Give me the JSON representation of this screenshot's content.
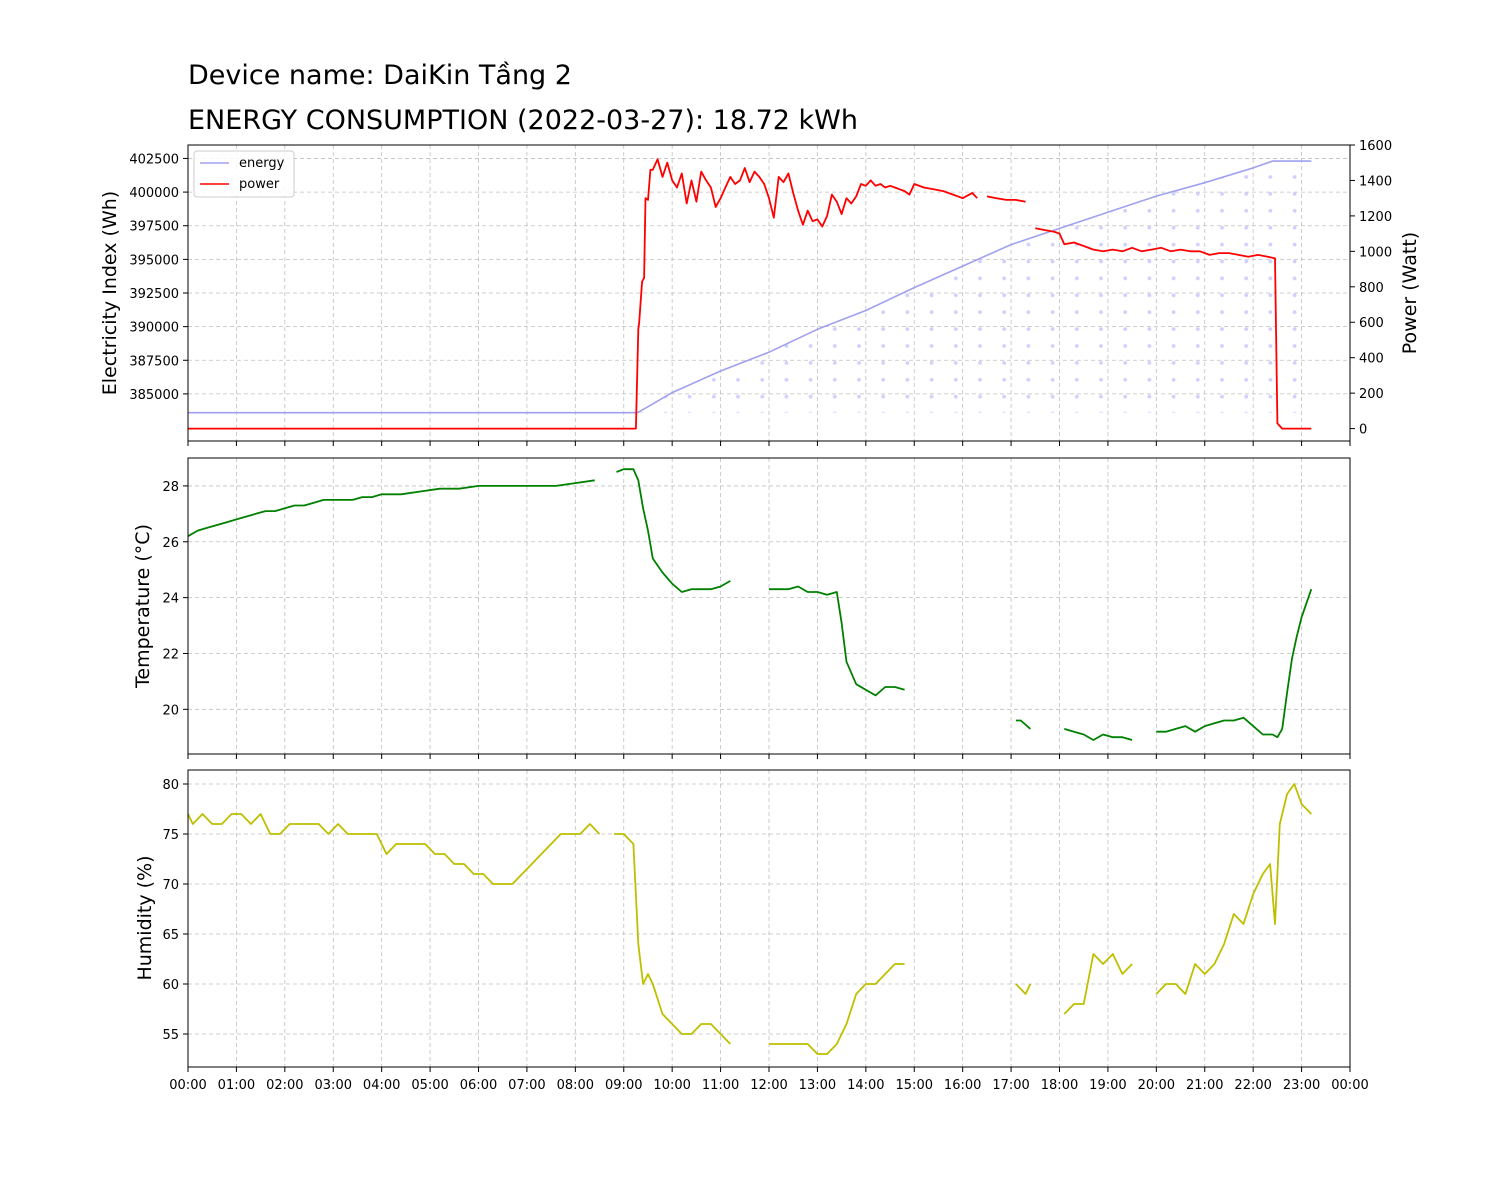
{
  "titles": {
    "line1": "Device name: DaiKin Tầng 2",
    "line2": "ENERGY CONSUMPTION (2022-03-27): 18.72 kWh"
  },
  "colors": {
    "energy": "#a0a0f0",
    "energy_fill": "#d0d0ff",
    "power": "#ff0000",
    "temperature": "#008000",
    "humidity": "#bfbf00"
  },
  "chart_data": [
    {
      "type": "line",
      "panel": "energy-power",
      "x_unit": "hour of day",
      "xlim": [
        0,
        24
      ],
      "x_tick_labels": [
        "00:00",
        "01:00",
        "02:00",
        "03:00",
        "04:00",
        "05:00",
        "06:00",
        "07:00",
        "08:00",
        "09:00",
        "10:00",
        "11:00",
        "12:00",
        "13:00",
        "14:00",
        "15:00",
        "16:00",
        "17:00",
        "18:00",
        "19:00",
        "20:00",
        "21:00",
        "22:00",
        "23:00",
        "00:00"
      ],
      "ylabel": "Electricity Index (Wh)",
      "ylim": [
        381500,
        403500
      ],
      "y_ticks": [
        385000,
        387500,
        390000,
        392500,
        395000,
        397500,
        400000,
        402500
      ],
      "y2label": "Power (Watt)",
      "y2lim": [
        -70,
        1600
      ],
      "y2_ticks": [
        0,
        200,
        400,
        600,
        800,
        1000,
        1200,
        1400,
        1600
      ],
      "legend": {
        "placement": "top-left",
        "entries": [
          "energy",
          "power"
        ]
      },
      "grid": true,
      "series": [
        {
          "name": "energy",
          "axis": "left",
          "x": [
            0,
            9.28,
            9.5,
            10,
            11,
            12,
            13,
            14,
            15,
            16,
            17,
            18,
            19,
            20,
            21,
            22,
            22.4,
            23.2
          ],
          "y": [
            383600,
            383600,
            384050,
            385100,
            386700,
            388100,
            389800,
            391200,
            392900,
            394500,
            396100,
            397300,
            398500,
            399700,
            400700,
            401800,
            402300,
            402300
          ]
        },
        {
          "name": "power",
          "axis": "right",
          "x": [
            0,
            9.25,
            9.3,
            9.32,
            9.38,
            9.42,
            9.45,
            9.5,
            9.55,
            9.6,
            9.7,
            9.8,
            9.9,
            10.0,
            10.1,
            10.2,
            10.3,
            10.4,
            10.5,
            10.6,
            10.7,
            10.8,
            10.9,
            11.0,
            11.1,
            11.2,
            11.3,
            11.4,
            11.5,
            11.6,
            11.7,
            11.8,
            11.9,
            12.0,
            12.1,
            12.2,
            12.3,
            12.4,
            12.5,
            12.6,
            12.7,
            12.8,
            12.9,
            13.0,
            13.1,
            13.2,
            13.3,
            13.4,
            13.5,
            13.6,
            13.7,
            13.8,
            13.9,
            14.0,
            14.1,
            14.2,
            14.3,
            14.4,
            14.5,
            14.6,
            14.7,
            14.8,
            14.9,
            15.0,
            15.2,
            15.4,
            15.6,
            15.8,
            16.0,
            16.2,
            16.3,
            null,
            16.5,
            16.7,
            16.9,
            17.1,
            17.3,
            null,
            17.5,
            17.7,
            17.9,
            18.0,
            18.1,
            18.3,
            18.5,
            18.7,
            18.9,
            19.1,
            19.3,
            19.5,
            19.7,
            19.9,
            20.1,
            20.3,
            20.5,
            20.7,
            20.9,
            21.1,
            21.3,
            21.5,
            21.7,
            21.9,
            22.1,
            22.3,
            22.45,
            22.5,
            22.6,
            23.2
          ],
          "y": [
            0,
            0,
            560,
            600,
            830,
            850,
            1300,
            1290,
            1460,
            1460,
            1520,
            1420,
            1500,
            1400,
            1360,
            1440,
            1270,
            1400,
            1280,
            1450,
            1400,
            1360,
            1250,
            1300,
            1360,
            1420,
            1380,
            1400,
            1470,
            1390,
            1450,
            1420,
            1380,
            1300,
            1190,
            1420,
            1390,
            1440,
            1330,
            1230,
            1150,
            1230,
            1170,
            1180,
            1140,
            1200,
            1320,
            1280,
            1210,
            1300,
            1270,
            1310,
            1380,
            1370,
            1400,
            1370,
            1380,
            1360,
            1370,
            1360,
            1350,
            1340,
            1320,
            1380,
            1360,
            1350,
            1340,
            1320,
            1300,
            1330,
            1300,
            null,
            1310,
            1300,
            1290,
            1290,
            1280,
            null,
            1130,
            1120,
            1110,
            1100,
            1040,
            1050,
            1030,
            1010,
            1000,
            1010,
            1000,
            1020,
            1000,
            1010,
            1020,
            1000,
            1010,
            1000,
            1000,
            980,
            990,
            990,
            980,
            970,
            980,
            970,
            960,
            30,
            0,
            0
          ]
        }
      ]
    },
    {
      "type": "line",
      "panel": "temperature",
      "xlim": [
        0,
        24
      ],
      "x_tick_labels": [
        "00:00",
        "01:00",
        "02:00",
        "03:00",
        "04:00",
        "05:00",
        "06:00",
        "07:00",
        "08:00",
        "09:00",
        "10:00",
        "11:00",
        "12:00",
        "13:00",
        "14:00",
        "15:00",
        "16:00",
        "17:00",
        "18:00",
        "19:00",
        "20:00",
        "21:00",
        "22:00",
        "23:00",
        "00:00"
      ],
      "ylabel": "Temperature (°C)",
      "ylim": [
        18.4,
        29.0
      ],
      "y_ticks": [
        20,
        22,
        24,
        26,
        28
      ],
      "grid": true,
      "series": [
        {
          "name": "temperature",
          "x": [
            0,
            0.2,
            0.4,
            0.6,
            0.8,
            1.0,
            1.2,
            1.4,
            1.6,
            1.8,
            2.0,
            2.2,
            2.4,
            2.6,
            2.8,
            3.0,
            3.2,
            3.4,
            3.6,
            3.8,
            4.0,
            4.4,
            4.8,
            5.2,
            5.6,
            6.0,
            6.4,
            6.8,
            7.2,
            7.6,
            8.0,
            8.4,
            null,
            8.85,
            9.0,
            9.2,
            9.3,
            9.4,
            9.5,
            9.6,
            9.8,
            10.0,
            10.2,
            10.4,
            10.6,
            10.8,
            11.0,
            11.2,
            null,
            12.0,
            12.2,
            12.4,
            12.6,
            12.8,
            13.0,
            13.2,
            13.4,
            13.5,
            13.6,
            13.8,
            14.0,
            14.2,
            14.4,
            14.6,
            14.8,
            null,
            17.1,
            17.2,
            17.4,
            null,
            18.1,
            18.3,
            18.5,
            18.7,
            18.9,
            19.1,
            19.3,
            19.5,
            null,
            20.0,
            20.2,
            20.4,
            20.6,
            20.8,
            21.0,
            21.2,
            21.4,
            21.6,
            21.8,
            22.0,
            22.2,
            22.4,
            22.5,
            22.6,
            22.7,
            22.8,
            22.9,
            23.0,
            23.2
          ],
          "y": [
            26.2,
            26.4,
            26.5,
            26.6,
            26.7,
            26.8,
            26.9,
            27.0,
            27.1,
            27.1,
            27.2,
            27.3,
            27.3,
            27.4,
            27.5,
            27.5,
            27.5,
            27.5,
            27.6,
            27.6,
            27.7,
            27.7,
            27.8,
            27.9,
            27.9,
            28.0,
            28.0,
            28.0,
            28.0,
            28.0,
            28.1,
            28.2,
            null,
            28.5,
            28.6,
            28.6,
            28.2,
            27.2,
            26.4,
            25.4,
            24.9,
            24.5,
            24.2,
            24.3,
            24.3,
            24.3,
            24.4,
            24.6,
            null,
            24.3,
            24.3,
            24.3,
            24.4,
            24.2,
            24.2,
            24.1,
            24.2,
            23.1,
            21.7,
            20.9,
            20.7,
            20.5,
            20.8,
            20.8,
            20.7,
            null,
            19.6,
            19.6,
            19.3,
            null,
            19.3,
            19.2,
            19.1,
            18.9,
            19.1,
            19.0,
            19.0,
            18.9,
            null,
            19.2,
            19.2,
            19.3,
            19.4,
            19.2,
            19.4,
            19.5,
            19.6,
            19.6,
            19.7,
            19.4,
            19.1,
            19.1,
            19.0,
            19.3,
            20.6,
            21.8,
            22.6,
            23.3,
            24.3
          ]
        }
      ]
    },
    {
      "type": "line",
      "panel": "humidity",
      "xlim": [
        0,
        24
      ],
      "x_tick_labels": [
        "00:00",
        "01:00",
        "02:00",
        "03:00",
        "04:00",
        "05:00",
        "06:00",
        "07:00",
        "08:00",
        "09:00",
        "10:00",
        "11:00",
        "12:00",
        "13:00",
        "14:00",
        "15:00",
        "16:00",
        "17:00",
        "18:00",
        "19:00",
        "20:00",
        "21:00",
        "22:00",
        "23:00",
        "00:00"
      ],
      "ylabel": "Humidity (%)",
      "ylim": [
        51.7,
        81.4
      ],
      "y_ticks": [
        55,
        60,
        65,
        70,
        75,
        80
      ],
      "grid": true,
      "series": [
        {
          "name": "humidity",
          "x": [
            0,
            0.1,
            0.3,
            0.5,
            0.7,
            0.9,
            1.1,
            1.3,
            1.5,
            1.7,
            1.9,
            2.1,
            2.3,
            2.5,
            2.7,
            2.9,
            3.1,
            3.3,
            3.5,
            3.7,
            3.9,
            4.1,
            4.3,
            4.5,
            4.7,
            4.9,
            5.1,
            5.3,
            5.5,
            5.7,
            5.9,
            6.1,
            6.3,
            6.5,
            6.7,
            6.9,
            7.1,
            7.3,
            7.5,
            7.7,
            7.9,
            8.1,
            8.3,
            8.5,
            null,
            8.8,
            9.0,
            9.2,
            9.3,
            9.4,
            9.5,
            9.6,
            9.8,
            10.0,
            10.2,
            10.4,
            10.6,
            10.8,
            11.0,
            11.2,
            null,
            12.0,
            12.4,
            12.8,
            13.0,
            13.2,
            13.4,
            13.6,
            13.8,
            14.0,
            14.2,
            14.4,
            14.6,
            14.8,
            null,
            17.1,
            17.3,
            17.4,
            null,
            18.1,
            18.3,
            18.5,
            18.7,
            18.9,
            19.1,
            19.3,
            19.5,
            null,
            20.0,
            20.2,
            20.4,
            20.6,
            20.8,
            21.0,
            21.2,
            21.4,
            21.6,
            21.8,
            22.0,
            22.2,
            22.35,
            22.45,
            22.55,
            22.7,
            22.85,
            23.0,
            23.2
          ],
          "y": [
            77,
            76,
            77,
            76,
            76,
            77,
            77,
            76,
            77,
            75,
            75,
            76,
            76,
            76,
            76,
            75,
            76,
            75,
            75,
            75,
            75,
            73,
            74,
            74,
            74,
            74,
            73,
            73,
            72,
            72,
            71,
            71,
            70,
            70,
            70,
            71,
            72,
            73,
            74,
            75,
            75,
            75,
            76,
            75,
            null,
            75,
            75,
            74,
            64,
            60,
            61,
            60,
            57,
            56,
            55,
            55,
            56,
            56,
            55,
            54,
            null,
            54,
            54,
            54,
            53,
            53,
            54,
            56,
            59,
            60,
            60,
            61,
            62,
            62,
            null,
            60,
            59,
            60,
            null,
            57,
            58,
            58,
            63,
            62,
            63,
            61,
            62,
            null,
            59,
            60,
            60,
            59,
            62,
            61,
            62,
            64,
            67,
            66,
            69,
            71,
            72,
            66,
            76,
            79,
            80,
            78,
            77
          ]
        }
      ]
    }
  ]
}
